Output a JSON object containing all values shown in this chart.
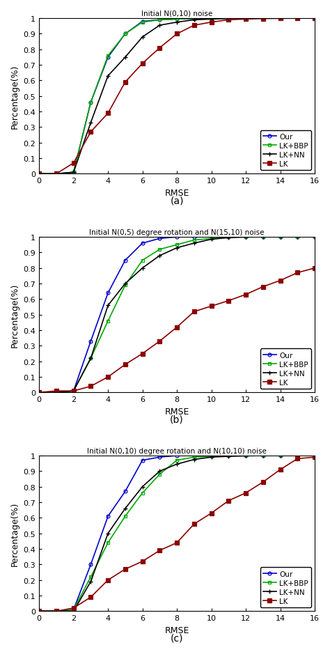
{
  "subplots": [
    {
      "title": "Initial N(0,10) noise",
      "label": "(a)",
      "our": [
        0,
        0.0,
        0.01,
        0.46,
        0.75,
        0.9,
        0.98,
        0.99,
        0.995,
        0.998,
        0.999,
        1.0,
        1.0,
        1.0,
        1.0,
        1.0,
        1.0
      ],
      "lkbbp": [
        0,
        0.0,
        0.01,
        0.46,
        0.76,
        0.9,
        0.975,
        0.99,
        0.995,
        0.998,
        0.999,
        1.0,
        1.0,
        1.0,
        1.0,
        1.0,
        1.0
      ],
      "lknn": [
        0,
        0.0,
        0.01,
        0.33,
        0.63,
        0.75,
        0.88,
        0.955,
        0.975,
        0.99,
        0.995,
        0.998,
        0.999,
        1.0,
        1.0,
        1.0,
        1.0
      ],
      "lk": [
        0,
        0.0,
        0.07,
        0.27,
        0.39,
        0.59,
        0.71,
        0.81,
        0.9,
        0.955,
        0.975,
        0.99,
        0.995,
        0.998,
        0.999,
        1.0,
        1.0
      ]
    },
    {
      "title": "Initial N(0,5) degree rotation and N(15,10) noise",
      "label": "(b)",
      "our": [
        0,
        0.0,
        0.01,
        0.33,
        0.64,
        0.85,
        0.96,
        0.99,
        1.0,
        1.0,
        1.0,
        1.0,
        1.0,
        1.0,
        1.0,
        1.0,
        1.0
      ],
      "lkbbp": [
        0,
        0.0,
        0.01,
        0.22,
        0.46,
        0.69,
        0.85,
        0.92,
        0.95,
        0.98,
        0.99,
        1.0,
        1.0,
        1.0,
        1.0,
        1.0,
        1.0
      ],
      "lknn": [
        0,
        0.0,
        0.01,
        0.22,
        0.56,
        0.7,
        0.8,
        0.88,
        0.93,
        0.96,
        0.985,
        0.995,
        0.999,
        1.0,
        1.0,
        1.0,
        1.0
      ],
      "lk": [
        0,
        0.01,
        0.01,
        0.04,
        0.1,
        0.18,
        0.25,
        0.33,
        0.42,
        0.52,
        0.555,
        0.59,
        0.63,
        0.68,
        0.72,
        0.77,
        0.8
      ]
    },
    {
      "title": "Initial N(0,10) degree rotation and N(10,10) noise",
      "label": "(c)",
      "our": [
        0,
        0.0,
        0.01,
        0.3,
        0.61,
        0.77,
        0.97,
        0.99,
        1.0,
        1.0,
        1.0,
        1.0,
        1.0,
        1.0,
        1.0,
        1.0,
        1.0
      ],
      "lkbbp": [
        0,
        0.0,
        0.01,
        0.22,
        0.44,
        0.61,
        0.76,
        0.88,
        0.97,
        0.99,
        0.995,
        1.0,
        1.0,
        1.0,
        1.0,
        1.0,
        1.0
      ],
      "lknn": [
        0,
        0.0,
        0.0,
        0.19,
        0.5,
        0.66,
        0.8,
        0.9,
        0.945,
        0.975,
        0.99,
        0.995,
        0.998,
        1.0,
        1.0,
        1.0,
        1.0
      ],
      "lk": [
        0,
        0.0,
        0.02,
        0.09,
        0.2,
        0.27,
        0.32,
        0.39,
        0.44,
        0.56,
        0.63,
        0.71,
        0.76,
        0.83,
        0.91,
        0.98,
        0.99
      ]
    }
  ],
  "x": [
    0,
    1,
    2,
    3,
    4,
    5,
    6,
    7,
    8,
    9,
    10,
    11,
    12,
    13,
    14,
    15,
    16
  ],
  "colors": {
    "our": "#0000cc",
    "lkbbp": "#00aa00",
    "lknn": "#000000",
    "lk": "#cc0000"
  },
  "legend_labels": [
    "Our",
    "LK+BBP",
    "LK+NN",
    "LK"
  ],
  "xlabel": "RMSE",
  "ylabel": "Percentage(%)",
  "xlim": [
    0,
    16
  ],
  "ylim": [
    0,
    1.0
  ],
  "yticks": [
    0,
    0.1,
    0.2,
    0.3,
    0.4,
    0.5,
    0.6,
    0.7,
    0.8,
    0.9,
    1.0
  ],
  "ytick_labels": [
    "0",
    "0.1",
    "0.2",
    "0.3",
    "0.4",
    "0.5",
    "0.6",
    "0.7",
    "0.8",
    "0.9",
    "1"
  ],
  "xticks": [
    0,
    2,
    4,
    6,
    8,
    10,
    12,
    14,
    16
  ]
}
